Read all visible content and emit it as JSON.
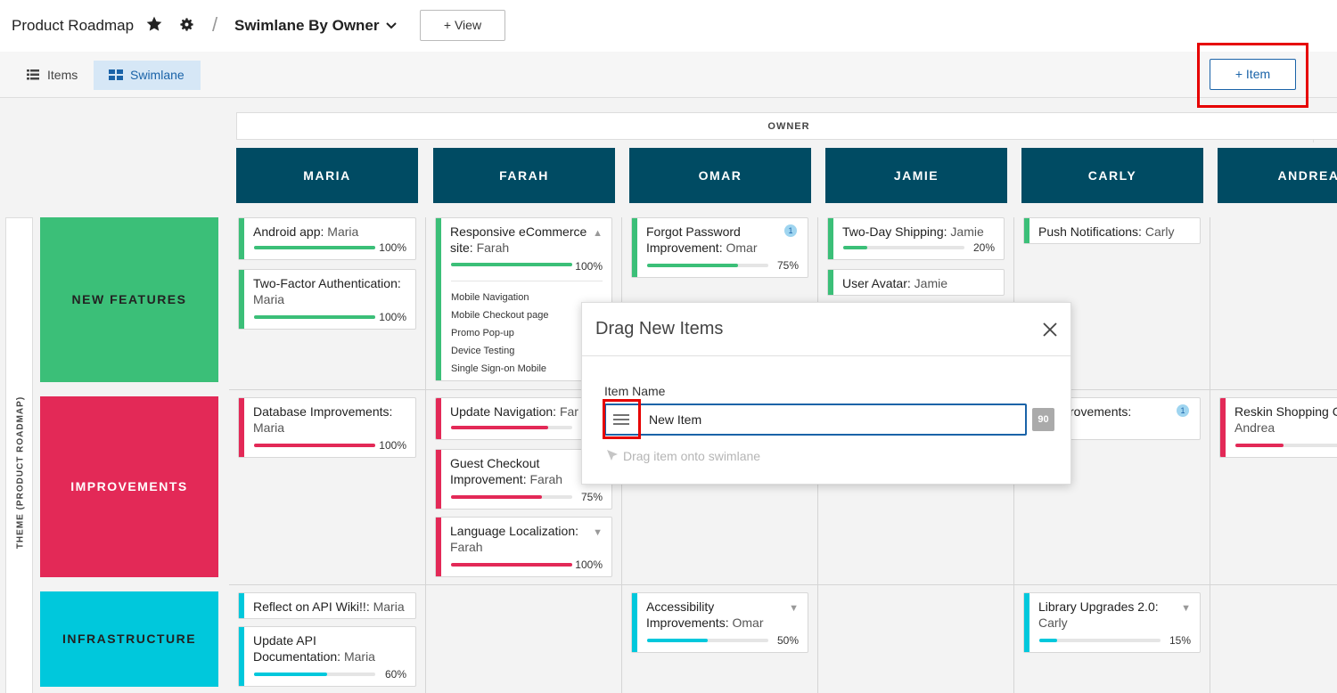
{
  "header": {
    "app_title": "Product Roadmap",
    "separator": "/",
    "view_name": "Swimlane By Owner",
    "add_view_label": "+ View"
  },
  "toolbar": {
    "tabs": [
      {
        "label": "Items",
        "icon": "list-icon",
        "active": false
      },
      {
        "label": "Swimlane",
        "icon": "grid-icon",
        "active": true
      }
    ],
    "add_item_label": "+ Item"
  },
  "grid": {
    "column_group_label": "OWNER",
    "row_group_label": "THEME (PRODUCT ROADMAP)",
    "columns": [
      "MARIA",
      "FARAH",
      "OMAR",
      "JAMIE",
      "CARLY",
      "ANDREA"
    ],
    "rows": [
      {
        "label": "NEW FEATURES",
        "color": "#3bbf78"
      },
      {
        "label": "IMPROVEMENTS",
        "color": "#e32957"
      },
      {
        "label": "INFRASTRUCTURE",
        "color": "#00c8dc"
      }
    ]
  },
  "cards": {
    "android": {
      "title": "Android app:",
      "owner": "Maria",
      "pct": "100%",
      "progress": 1.0
    },
    "twofactor": {
      "title": "Two-Factor Authentication:",
      "owner": "Maria",
      "pct": "100%",
      "progress": 1.0
    },
    "responsive": {
      "title": "Responsive eCommerce site:",
      "owner": "Farah",
      "pct": "100%",
      "progress": 1.0,
      "subitems": [
        "Mobile Navigation",
        "Mobile Checkout page",
        "Promo Pop-up",
        "Device Testing",
        "Single Sign-on Mobile"
      ]
    },
    "forgotpw": {
      "title": "Forgot Password Improvement:",
      "owner": "Omar",
      "pct": "75%",
      "progress": 0.75,
      "badge": "1"
    },
    "twoday": {
      "title": "Two-Day Shipping:",
      "owner": "Jamie",
      "pct": "20%",
      "progress": 0.2
    },
    "avatar": {
      "title": "User Avatar:",
      "owner": "Jamie"
    },
    "pushnotif": {
      "title": "Push Notifications:",
      "owner": "Carly"
    },
    "dbimpr": {
      "title": "Database Improvements:",
      "owner": "Maria",
      "pct": "100%",
      "progress": 1.0
    },
    "updnav": {
      "title": "Update Navigation:",
      "owner": "Far",
      "progress": 0.8
    },
    "guestco": {
      "title": "Guest Checkout Improvement:",
      "owner": "Farah",
      "pct": "75%",
      "progress": 0.75
    },
    "langloc": {
      "title": "Language Localization:",
      "owner": "Farah",
      "pct": "100%",
      "progress": 1.0
    },
    "carlyimpr": {
      "title": "h Improvements:",
      "badge": "1"
    },
    "reskin": {
      "title": "Reskin Shopping C",
      "owner": "Andrea",
      "progress": 0.4
    },
    "reflectapi": {
      "title": "Reflect on API Wiki!!:",
      "owner": "Maria"
    },
    "updapi": {
      "title": "Update API Documentation:",
      "owner": "Maria",
      "pct": "60%",
      "progress": 0.6
    },
    "access": {
      "title": "Accessibility Improvements:",
      "owner": "Omar",
      "pct": "50%",
      "progress": 0.5
    },
    "libupg": {
      "title": "Library Upgrades 2.0:",
      "owner": "Carly",
      "pct": "15%",
      "progress": 0.15
    }
  },
  "modal": {
    "title": "Drag New Items",
    "field_label": "Item Name",
    "input_value": "New Item",
    "remaining_count": "90",
    "hint": "Drag item onto swimlane"
  }
}
